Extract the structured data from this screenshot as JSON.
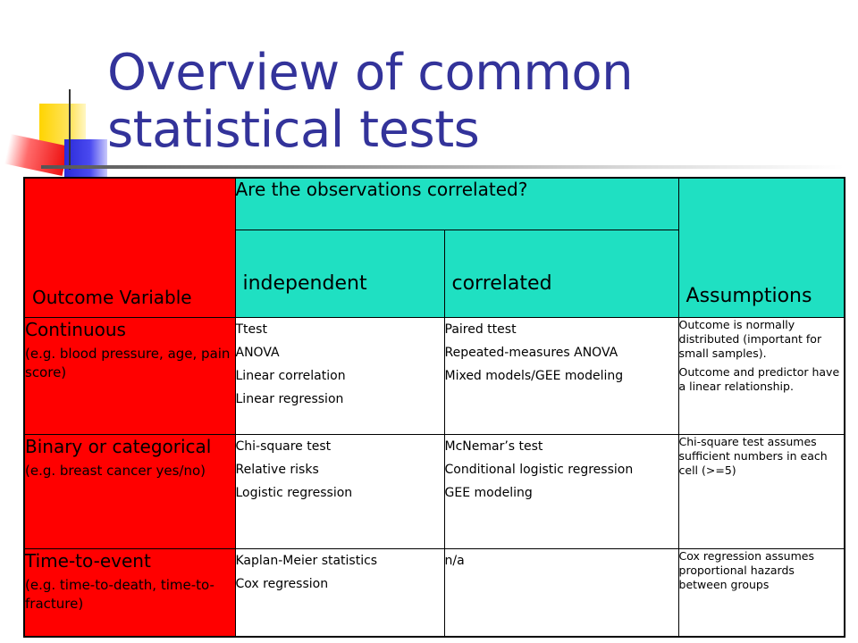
{
  "slide": {
    "title_line1": "Overview of common",
    "title_line2": "statistical tests"
  },
  "colors": {
    "title": "#33339a",
    "header_bg": "#1fe0c2",
    "label_bg": "#ff0000"
  },
  "table": {
    "header": {
      "outcome_variable": "Outcome Variable",
      "correlated_question": "Are the observations correlated?",
      "independent": "independent",
      "correlated": "correlated",
      "assumptions": "Assumptions"
    },
    "rows": [
      {
        "label": "Continuous",
        "example": "(e.g. blood pressure, age, pain score)",
        "independent": [
          "Ttest",
          "ANOVA",
          "Linear correlation",
          "Linear regression"
        ],
        "correlated": [
          "Paired ttest",
          "Repeated-measures ANOVA",
          "Mixed models/GEE modeling"
        ],
        "assumptions": [
          "Outcome is normally distributed (important for small samples).",
          "Outcome and predictor have a linear relationship."
        ]
      },
      {
        "label": "Binary or categorical",
        "example": "(e.g. breast cancer yes/no)",
        "independent": [
          "Chi-square test",
          "Relative risks",
          "Logistic regression"
        ],
        "correlated": [
          "McNemar’s test",
          "Conditional logistic regression",
          "GEE modeling"
        ],
        "assumptions": [
          "Chi-square test assumes sufficient numbers in each cell (>=5)"
        ]
      },
      {
        "label": "Time-to-event",
        "example": "(e.g. time-to-death, time-to-fracture)",
        "independent": [
          "Kaplan-Meier statistics",
          "Cox regression"
        ],
        "correlated": [
          "n/a"
        ],
        "assumptions": [
          "Cox regression assumes proportional hazards between groups"
        ]
      }
    ]
  }
}
